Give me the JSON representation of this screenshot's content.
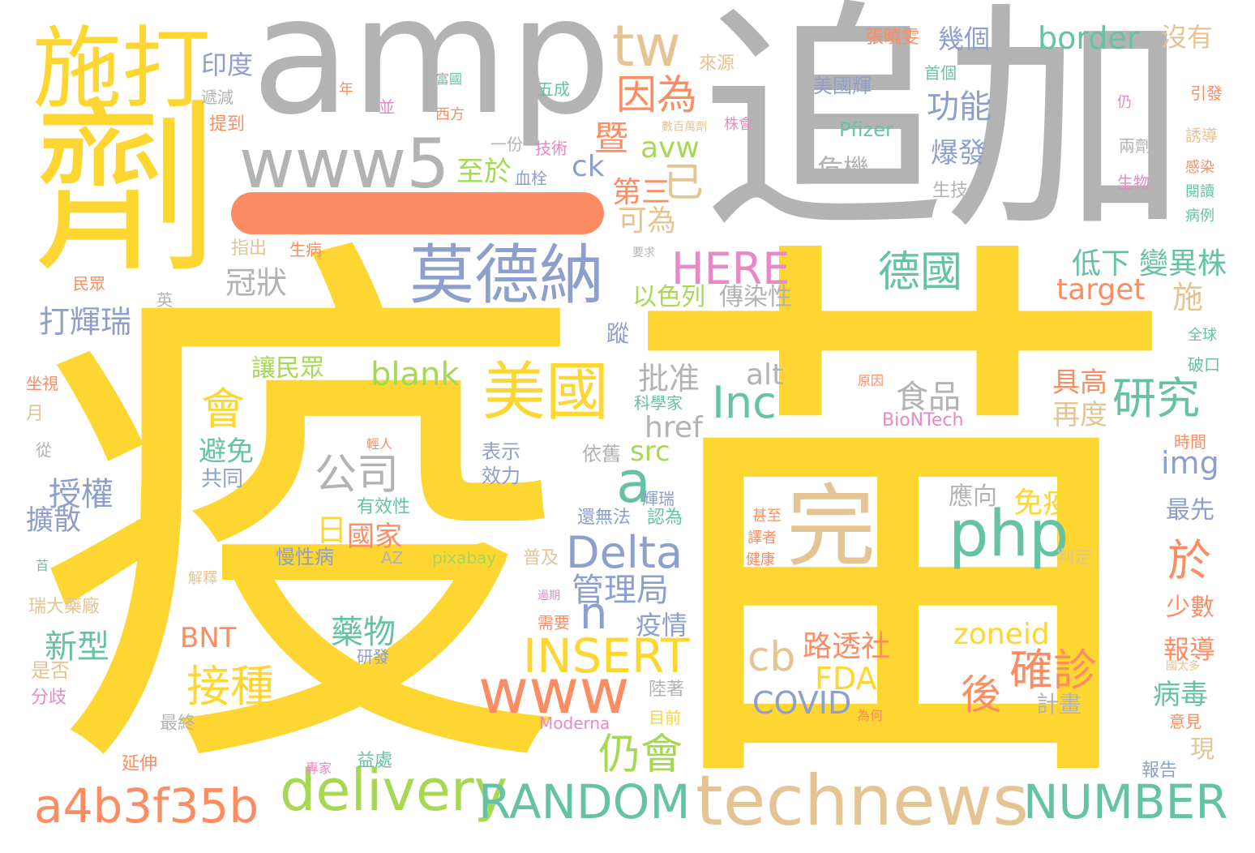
{
  "palette": {
    "yellow": "#fdd631",
    "gray": "#b3b3b3",
    "blue": "#8da0cb",
    "green": "#66c2a5",
    "orange": "#fc8d62",
    "tan": "#e5c494",
    "lime": "#a6d854",
    "pink": "#e78ac3"
  },
  "words": [
    {
      "t": "疫"
    },
    {
      "t": "苗"
    },
    {
      "t": "追加"
    },
    {
      "t": "amp"
    },
    {
      "t": "劑"
    },
    {
      "t": "施打"
    },
    {
      "t": "莫德納"
    },
    {
      "t": "www5"
    },
    {
      "t": "tw"
    },
    {
      "t": "technews"
    },
    {
      "t": "美國"
    },
    {
      "t": "完"
    },
    {
      "t": "php"
    },
    {
      "t": "www"
    },
    {
      "t": "delivery"
    },
    {
      "t": "RANDOM"
    },
    {
      "t": "NUMBER"
    },
    {
      "t": "a4b3f35b"
    },
    {
      "t": "INSERT"
    },
    {
      "t": "Delta"
    },
    {
      "t": "Inc"
    },
    {
      "t": "a"
    },
    {
      "t": "HERE"
    },
    {
      "t": "德國"
    },
    {
      "t": "研究"
    },
    {
      "t": "因為"
    },
    {
      "t": "仍會"
    },
    {
      "t": "接種"
    },
    {
      "t": "確診"
    },
    {
      "t": "公司"
    },
    {
      "t": "border"
    },
    {
      "t": "功能"
    },
    {
      "t": "cb"
    },
    {
      "t": "後"
    },
    {
      "t": "於"
    },
    {
      "t": "會"
    },
    {
      "t": "已"
    },
    {
      "t": "暨"
    },
    {
      "t": "n"
    },
    {
      "t": "第三"
    },
    {
      "t": "可為"
    },
    {
      "t": "avw"
    },
    {
      "t": "ck"
    },
    {
      "t": "至於"
    },
    {
      "t": "印度"
    },
    {
      "t": "幾個"
    },
    {
      "t": "沒有"
    },
    {
      "t": "爆發"
    },
    {
      "t": "危機"
    },
    {
      "t": "打輝瑞"
    },
    {
      "t": "冠狀"
    },
    {
      "t": "低下"
    },
    {
      "t": "變異株"
    },
    {
      "t": "target"
    },
    {
      "t": "施"
    },
    {
      "t": "blank"
    },
    {
      "t": "alt"
    },
    {
      "t": "批准"
    },
    {
      "t": "食品"
    },
    {
      "t": "具高"
    },
    {
      "t": "再度"
    },
    {
      "t": "href"
    },
    {
      "t": "src"
    },
    {
      "t": "img"
    },
    {
      "t": "授權"
    },
    {
      "t": "擴散"
    },
    {
      "t": "避免"
    },
    {
      "t": "共同"
    },
    {
      "t": "日"
    },
    {
      "t": "國家"
    },
    {
      "t": "管理局"
    },
    {
      "t": "藥物"
    },
    {
      "t": "路透社"
    },
    {
      "t": "FDA"
    },
    {
      "t": "COVID"
    },
    {
      "t": "zoneid"
    },
    {
      "t": "免疫"
    },
    {
      "t": "應向"
    },
    {
      "t": "新型"
    },
    {
      "t": "BNT"
    },
    {
      "t": "疫情"
    },
    {
      "t": "以色列"
    },
    {
      "t": "傳染性"
    },
    {
      "t": "讓民眾"
    },
    {
      "t": "病毒"
    },
    {
      "t": "報導"
    },
    {
      "t": "少數"
    },
    {
      "t": "最先"
    },
    {
      "t": "Pfizer"
    },
    {
      "t": "BioNTech"
    },
    {
      "t": "Moderna"
    },
    {
      "t": "pixabay"
    },
    {
      "t": "AZ"
    },
    {
      "t": "美國輝"
    },
    {
      "t": "張曉雯"
    },
    {
      "t": "來源"
    },
    {
      "t": "首個"
    },
    {
      "t": "表示"
    },
    {
      "t": "效力"
    },
    {
      "t": "依舊"
    },
    {
      "t": "有效性"
    },
    {
      "t": "慢性病"
    },
    {
      "t": "還無法"
    },
    {
      "t": "認為"
    },
    {
      "t": "普及"
    },
    {
      "t": "判定"
    },
    {
      "t": "計畫"
    },
    {
      "t": "是否"
    },
    {
      "t": "分歧"
    },
    {
      "t": "瑞大藥廠"
    },
    {
      "t": "延伸"
    },
    {
      "t": "益處"
    },
    {
      "t": "最終"
    },
    {
      "t": "目前"
    },
    {
      "t": "陸著"
    },
    {
      "t": "需要"
    },
    {
      "t": "研發"
    },
    {
      "t": "五成"
    },
    {
      "t": "技術"
    },
    {
      "t": "血栓"
    },
    {
      "t": "一份"
    },
    {
      "t": "西方"
    },
    {
      "t": "並"
    },
    {
      "t": "年"
    },
    {
      "t": "遞減"
    },
    {
      "t": "提到"
    },
    {
      "t": "指出"
    },
    {
      "t": "生病"
    },
    {
      "t": "民眾"
    },
    {
      "t": "英"
    },
    {
      "t": "坐視"
    },
    {
      "t": "月"
    },
    {
      "t": "從"
    },
    {
      "t": "苩"
    },
    {
      "t": "解釋"
    },
    {
      "t": "現"
    },
    {
      "t": "報告"
    },
    {
      "t": "意見"
    },
    {
      "t": "為何"
    },
    {
      "t": "專家"
    },
    {
      "t": "時間"
    },
    {
      "t": "全球"
    },
    {
      "t": "破口"
    },
    {
      "t": "引發"
    },
    {
      "t": "誘導"
    },
    {
      "t": "感染"
    },
    {
      "t": "閱讀"
    },
    {
      "t": "病例"
    },
    {
      "t": "兩劑"
    },
    {
      "t": "仍"
    },
    {
      "t": "生物"
    },
    {
      "t": "生技"
    },
    {
      "t": "株會"
    },
    {
      "t": "數百萬劑"
    },
    {
      "t": "富國"
    },
    {
      "t": "科學家"
    },
    {
      "t": "原因"
    },
    {
      "t": "輕人"
    },
    {
      "t": "蹤"
    },
    {
      "t": "輝瑞"
    },
    {
      "t": "甚至"
    },
    {
      "t": "譯者"
    },
    {
      "t": "健康"
    },
    {
      "t": "過期"
    },
    {
      "t": "要求"
    },
    {
      "t": "國太多"
    }
  ]
}
